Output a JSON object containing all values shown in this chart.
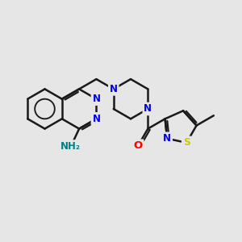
{
  "bg_color": "#e6e6e6",
  "bond_color": "#1a1a1a",
  "n_color": "#0000ee",
  "s_color": "#cccc00",
  "o_color": "#ff0000",
  "nh2_color": "#008080",
  "lw": 1.8,
  "figsize": [
    3.0,
    3.0
  ],
  "dpi": 100,
  "xlim": [
    0,
    10
  ],
  "ylim": [
    0,
    10
  ]
}
